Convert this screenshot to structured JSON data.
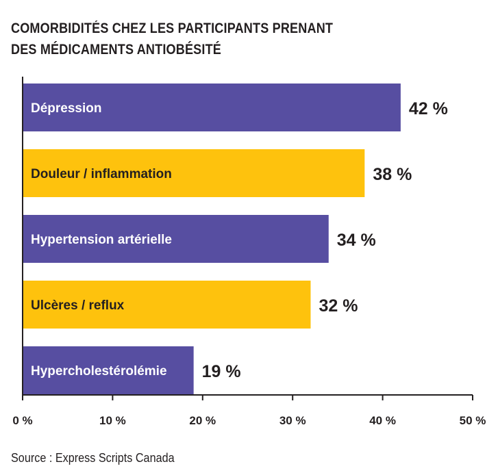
{
  "title_lines": [
    "COMORBIDITÉS CHEZ LES PARTICIPANTS PRENANT",
    "DES MÉDICAMENTS ANTIOBÉSITÉ"
  ],
  "source": "Source : Express Scripts Canada",
  "colors": {
    "purple": "#574ea1",
    "yellow": "#fec20d",
    "text_on_purple": "#ffffff",
    "text_on_yellow": "#231f20",
    "axis": "#231f20"
  },
  "chart_data": {
    "type": "bar",
    "orientation": "horizontal",
    "categories": [
      "Dépression",
      "Douleur / inflammation",
      "Hypertension artérielle",
      "Ulcères / reflux",
      "Hypercholestérolémie"
    ],
    "values": [
      42,
      38,
      34,
      32,
      19
    ],
    "value_labels": [
      "42 %",
      "38 %",
      "34 %",
      "32 %",
      "19 %"
    ],
    "bar_colors": [
      "#574ea1",
      "#fec20d",
      "#574ea1",
      "#fec20d",
      "#574ea1"
    ],
    "xlim": [
      0,
      50
    ],
    "x_ticks": [
      0,
      10,
      20,
      30,
      40,
      50
    ],
    "x_tick_labels": [
      "0 %",
      "10 %",
      "20 %",
      "30 %",
      "40 %",
      "50 %"
    ],
    "grid": false,
    "legend": "none"
  }
}
